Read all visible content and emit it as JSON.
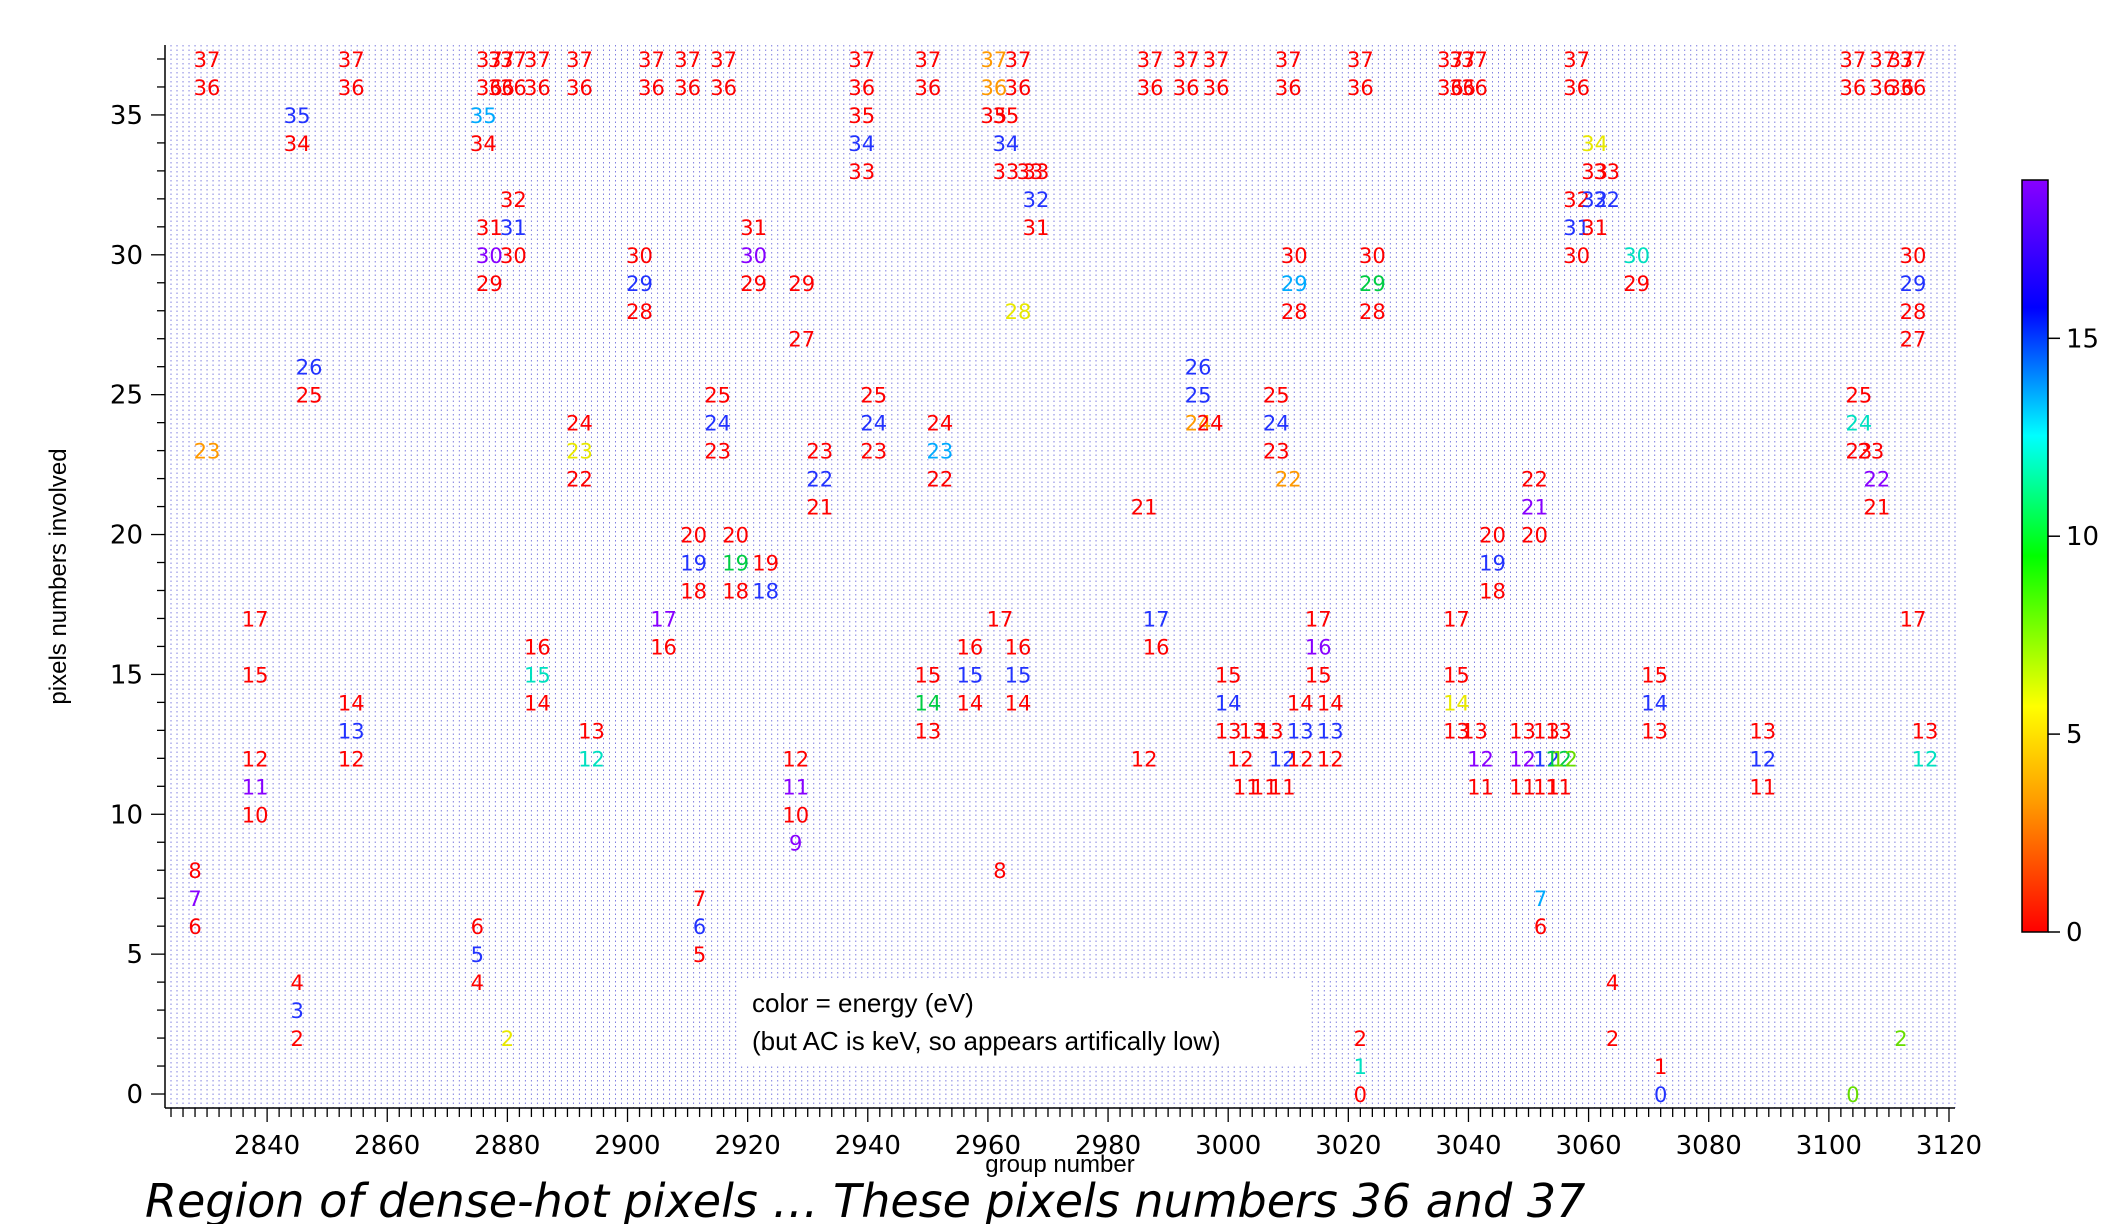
{
  "caption": "Region of dense-hot pixels … These pixels numbers 36 and 37",
  "annotation": {
    "line1": "color = energy (eV)",
    "line2": "(but AC is keV, so appears artifically low)"
  },
  "chart_data": {
    "type": "scatter",
    "xlabel": "group number",
    "ylabel": "pixels numbers involved",
    "xlim": [
      2823,
      3121
    ],
    "ylim": [
      -0.5,
      37.5
    ],
    "xticks": [
      2840,
      2860,
      2880,
      2900,
      2920,
      2940,
      2960,
      2980,
      3000,
      3020,
      3040,
      3060,
      3080,
      3100,
      3120
    ],
    "yticks": [
      0,
      5,
      10,
      15,
      20,
      25,
      30,
      35
    ],
    "grid": "vertical dotted lines, one per group number",
    "marker": "pixel number text colored by energy",
    "colorbar": {
      "label": "energy (eV)",
      "range": [
        0,
        19
      ],
      "ticks": [
        0,
        5,
        10,
        15
      ],
      "colormap": "rainbow (red low, violet high)"
    },
    "points": [
      {
        "x": 2828,
        "y": 8,
        "e": 0
      },
      {
        "x": 2828,
        "y": 7,
        "e": 18
      },
      {
        "x": 2828,
        "y": 6,
        "e": 0
      },
      {
        "x": 2830,
        "y": 37,
        "e": 0
      },
      {
        "x": 2830,
        "y": 36,
        "e": 0
      },
      {
        "x": 2830,
        "y": 23,
        "e": 2
      },
      {
        "x": 2838,
        "y": 17,
        "e": 0
      },
      {
        "x": 2838,
        "y": 15,
        "e": 0
      },
      {
        "x": 2838,
        "y": 12,
        "e": 0
      },
      {
        "x": 2838,
        "y": 11,
        "e": 18
      },
      {
        "x": 2838,
        "y": 10,
        "e": 0
      },
      {
        "x": 2845,
        "y": 35,
        "e": 17
      },
      {
        "x": 2845,
        "y": 34,
        "e": 0
      },
      {
        "x": 2845,
        "y": 4,
        "e": 0
      },
      {
        "x": 2845,
        "y": 3,
        "e": 17
      },
      {
        "x": 2845,
        "y": 2,
        "e": 0
      },
      {
        "x": 2847,
        "y": 26,
        "e": 17
      },
      {
        "x": 2847,
        "y": 25,
        "e": 0
      },
      {
        "x": 2854,
        "y": 37,
        "e": 0
      },
      {
        "x": 2854,
        "y": 36,
        "e": 0
      },
      {
        "x": 2854,
        "y": 14,
        "e": 0
      },
      {
        "x": 2854,
        "y": 13,
        "e": 16
      },
      {
        "x": 2854,
        "y": 12,
        "e": 0
      },
      {
        "x": 2875,
        "y": 6,
        "e": 0
      },
      {
        "x": 2875,
        "y": 5,
        "e": 17
      },
      {
        "x": 2875,
        "y": 4,
        "e": 0
      },
      {
        "x": 2876,
        "y": 35,
        "e": 14
      },
      {
        "x": 2876,
        "y": 34,
        "e": 0
      },
      {
        "x": 2877,
        "y": 37,
        "e": 0
      },
      {
        "x": 2877,
        "y": 36,
        "e": 0
      },
      {
        "x": 2877,
        "y": 31,
        "e": 0
      },
      {
        "x": 2877,
        "y": 30,
        "e": 18
      },
      {
        "x": 2877,
        "y": 29,
        "e": 0
      },
      {
        "x": 2879,
        "y": 37,
        "e": 0
      },
      {
        "x": 2879,
        "y": 36,
        "e": 0
      },
      {
        "x": 2880,
        "y": 2,
        "e": 6
      },
      {
        "x": 2881,
        "y": 37,
        "e": 0
      },
      {
        "x": 2881,
        "y": 36,
        "e": 0
      },
      {
        "x": 2881,
        "y": 32,
        "e": 0
      },
      {
        "x": 2881,
        "y": 31,
        "e": 17
      },
      {
        "x": 2881,
        "y": 30,
        "e": 0
      },
      {
        "x": 2885,
        "y": 37,
        "e": 0
      },
      {
        "x": 2885,
        "y": 36,
        "e": 0
      },
      {
        "x": 2885,
        "y": 16,
        "e": 0
      },
      {
        "x": 2885,
        "y": 15,
        "e": 12
      },
      {
        "x": 2885,
        "y": 14,
        "e": 0
      },
      {
        "x": 2892,
        "y": 37,
        "e": 0
      },
      {
        "x": 2892,
        "y": 36,
        "e": 0
      },
      {
        "x": 2892,
        "y": 24,
        "e": 0
      },
      {
        "x": 2892,
        "y": 23,
        "e": 6
      },
      {
        "x": 2892,
        "y": 22,
        "e": 0
      },
      {
        "x": 2894,
        "y": 13,
        "e": 0
      },
      {
        "x": 2894,
        "y": 12,
        "e": 12
      },
      {
        "x": 2902,
        "y": 30,
        "e": 0
      },
      {
        "x": 2902,
        "y": 29,
        "e": 17
      },
      {
        "x": 2902,
        "y": 28,
        "e": 0
      },
      {
        "x": 2904,
        "y": 37,
        "e": 0
      },
      {
        "x": 2904,
        "y": 36,
        "e": 0
      },
      {
        "x": 2906,
        "y": 17,
        "e": 18
      },
      {
        "x": 2906,
        "y": 16,
        "e": 0
      },
      {
        "x": 2910,
        "y": 37,
        "e": 0
      },
      {
        "x": 2910,
        "y": 36,
        "e": 0
      },
      {
        "x": 2911,
        "y": 20,
        "e": 0
      },
      {
        "x": 2911,
        "y": 19,
        "e": 17
      },
      {
        "x": 2911,
        "y": 18,
        "e": 0
      },
      {
        "x": 2912,
        "y": 7,
        "e": 0
      },
      {
        "x": 2912,
        "y": 6,
        "e": 17
      },
      {
        "x": 2912,
        "y": 5,
        "e": 0
      },
      {
        "x": 2915,
        "y": 25,
        "e": 0
      },
      {
        "x": 2915,
        "y": 24,
        "e": 17
      },
      {
        "x": 2915,
        "y": 23,
        "e": 0
      },
      {
        "x": 2916,
        "y": 37,
        "e": 0
      },
      {
        "x": 2916,
        "y": 36,
        "e": 0
      },
      {
        "x": 2918,
        "y": 20,
        "e": 0
      },
      {
        "x": 2918,
        "y": 19,
        "e": 11
      },
      {
        "x": 2918,
        "y": 18,
        "e": 0
      },
      {
        "x": 2921,
        "y": 31,
        "e": 0
      },
      {
        "x": 2921,
        "y": 30,
        "e": 18
      },
      {
        "x": 2921,
        "y": 29,
        "e": 0
      },
      {
        "x": 2923,
        "y": 19,
        "e": 0
      },
      {
        "x": 2923,
        "y": 18,
        "e": 17
      },
      {
        "x": 2929,
        "y": 29,
        "e": 0
      },
      {
        "x": 2929,
        "y": 27,
        "e": 0
      },
      {
        "x": 2928,
        "y": 12,
        "e": 0
      },
      {
        "x": 2928,
        "y": 11,
        "e": 18
      },
      {
        "x": 2928,
        "y": 10,
        "e": 0
      },
      {
        "x": 2928,
        "y": 9,
        "e": 18
      },
      {
        "x": 2932,
        "y": 23,
        "e": 0
      },
      {
        "x": 2932,
        "y": 22,
        "e": 17
      },
      {
        "x": 2932,
        "y": 21,
        "e": 0
      },
      {
        "x": 2939,
        "y": 37,
        "e": 0
      },
      {
        "x": 2939,
        "y": 36,
        "e": 0
      },
      {
        "x": 2939,
        "y": 35,
        "e": 0
      },
      {
        "x": 2939,
        "y": 34,
        "e": 17
      },
      {
        "x": 2939,
        "y": 33,
        "e": 0
      },
      {
        "x": 2941,
        "y": 25,
        "e": 0
      },
      {
        "x": 2941,
        "y": 24,
        "e": 17
      },
      {
        "x": 2941,
        "y": 23,
        "e": 0
      },
      {
        "x": 2950,
        "y": 37,
        "e": 0
      },
      {
        "x": 2950,
        "y": 36,
        "e": 0
      },
      {
        "x": 2950,
        "y": 15,
        "e": 0
      },
      {
        "x": 2950,
        "y": 14,
        "e": 11
      },
      {
        "x": 2950,
        "y": 13,
        "e": 0
      },
      {
        "x": 2952,
        "y": 24,
        "e": 0
      },
      {
        "x": 2952,
        "y": 23,
        "e": 15
      },
      {
        "x": 2952,
        "y": 22,
        "e": 0
      },
      {
        "x": 2957,
        "y": 16,
        "e": 0
      },
      {
        "x": 2957,
        "y": 15,
        "e": 17
      },
      {
        "x": 2957,
        "y": 14,
        "e": 0
      },
      {
        "x": 2961,
        "y": 37,
        "e": 2
      },
      {
        "x": 2961,
        "y": 36,
        "e": 2
      },
      {
        "x": 2961,
        "y": 35,
        "e": 0
      },
      {
        "x": 2962,
        "y": 17,
        "e": 0
      },
      {
        "x": 2962,
        "y": 8,
        "e": 0
      },
      {
        "x": 2963,
        "y": 35,
        "e": 0
      },
      {
        "x": 2963,
        "y": 34,
        "e": 17
      },
      {
        "x": 2963,
        "y": 33,
        "e": 0
      },
      {
        "x": 2965,
        "y": 37,
        "e": 0
      },
      {
        "x": 2965,
        "y": 36,
        "e": 0
      },
      {
        "x": 2965,
        "y": 28,
        "e": 6
      },
      {
        "x": 2965,
        "y": 16,
        "e": 0
      },
      {
        "x": 2965,
        "y": 15,
        "e": 17
      },
      {
        "x": 2965,
        "y": 14,
        "e": 0
      },
      {
        "x": 2967,
        "y": 33,
        "e": 0
      },
      {
        "x": 2968,
        "y": 33,
        "e": 0
      },
      {
        "x": 2968,
        "y": 32,
        "e": 17
      },
      {
        "x": 2968,
        "y": 31,
        "e": 0
      },
      {
        "x": 2987,
        "y": 37,
        "e": 0
      },
      {
        "x": 2987,
        "y": 36,
        "e": 0
      },
      {
        "x": 2986,
        "y": 21,
        "e": 0
      },
      {
        "x": 2986,
        "y": 12,
        "e": 0
      },
      {
        "x": 2988,
        "y": 17,
        "e": 17
      },
      {
        "x": 2988,
        "y": 16,
        "e": 0
      },
      {
        "x": 2993,
        "y": 37,
        "e": 0
      },
      {
        "x": 2993,
        "y": 36,
        "e": 0
      },
      {
        "x": 2995,
        "y": 26,
        "e": 17
      },
      {
        "x": 2995,
        "y": 25,
        "e": 16
      },
      {
        "x": 2995,
        "y": 24,
        "e": 3
      },
      {
        "x": 2997,
        "y": 24,
        "e": 0
      },
      {
        "x": 2998,
        "y": 37,
        "e": 0
      },
      {
        "x": 2998,
        "y": 36,
        "e": 0
      },
      {
        "x": 3000,
        "y": 15,
        "e": 0
      },
      {
        "x": 3000,
        "y": 14,
        "e": 17
      },
      {
        "x": 3000,
        "y": 13,
        "e": 0
      },
      {
        "x": 3002,
        "y": 12,
        "e": 0
      },
      {
        "x": 3003,
        "y": 11,
        "e": 0
      },
      {
        "x": 3004,
        "y": 13,
        "e": 0
      },
      {
        "x": 3006,
        "y": 11,
        "e": 0
      },
      {
        "x": 3007,
        "y": 13,
        "e": 0
      },
      {
        "x": 3008,
        "y": 25,
        "e": 0
      },
      {
        "x": 3008,
        "y": 24,
        "e": 17
      },
      {
        "x": 3008,
        "y": 23,
        "e": 0
      },
      {
        "x": 3009,
        "y": 12,
        "e": 17
      },
      {
        "x": 3009,
        "y": 11,
        "e": 0
      },
      {
        "x": 3010,
        "y": 37,
        "e": 0
      },
      {
        "x": 3010,
        "y": 36,
        "e": 0
      },
      {
        "x": 3011,
        "y": 30,
        "e": 0
      },
      {
        "x": 3011,
        "y": 29,
        "e": 14
      },
      {
        "x": 3011,
        "y": 28,
        "e": 0
      },
      {
        "x": 3010,
        "y": 22,
        "e": 2
      },
      {
        "x": 3012,
        "y": 14,
        "e": 0
      },
      {
        "x": 3012,
        "y": 13,
        "e": 17
      },
      {
        "x": 3012,
        "y": 12,
        "e": 0
      },
      {
        "x": 3015,
        "y": 17,
        "e": 0
      },
      {
        "x": 3015,
        "y": 16,
        "e": 18
      },
      {
        "x": 3015,
        "y": 15,
        "e": 0
      },
      {
        "x": 3017,
        "y": 14,
        "e": 0
      },
      {
        "x": 3017,
        "y": 13,
        "e": 17
      },
      {
        "x": 3017,
        "y": 12,
        "e": 0
      },
      {
        "x": 3022,
        "y": 37,
        "e": 0
      },
      {
        "x": 3022,
        "y": 36,
        "e": 0
      },
      {
        "x": 3022,
        "y": 2,
        "e": 0
      },
      {
        "x": 3022,
        "y": 1,
        "e": 13
      },
      {
        "x": 3022,
        "y": 0,
        "e": 0
      },
      {
        "x": 3024,
        "y": 30,
        "e": 0
      },
      {
        "x": 3024,
        "y": 29,
        "e": 11
      },
      {
        "x": 3024,
        "y": 28,
        "e": 0
      },
      {
        "x": 3037,
        "y": 37,
        "e": 0
      },
      {
        "x": 3037,
        "y": 36,
        "e": 0
      },
      {
        "x": 3039,
        "y": 37,
        "e": 0
      },
      {
        "x": 3039,
        "y": 36,
        "e": 0
      },
      {
        "x": 3041,
        "y": 37,
        "e": 0
      },
      {
        "x": 3041,
        "y": 36,
        "e": 0
      },
      {
        "x": 3038,
        "y": 17,
        "e": 0
      },
      {
        "x": 3038,
        "y": 15,
        "e": 0
      },
      {
        "x": 3038,
        "y": 14,
        "e": 6
      },
      {
        "x": 3038,
        "y": 13,
        "e": 0
      },
      {
        "x": 3041,
        "y": 13,
        "e": 0
      },
      {
        "x": 3042,
        "y": 12,
        "e": 18
      },
      {
        "x": 3042,
        "y": 11,
        "e": 0
      },
      {
        "x": 3044,
        "y": 20,
        "e": 0
      },
      {
        "x": 3044,
        "y": 19,
        "e": 17
      },
      {
        "x": 3044,
        "y": 18,
        "e": 0
      },
      {
        "x": 3049,
        "y": 13,
        "e": 0
      },
      {
        "x": 3049,
        "y": 12,
        "e": 18
      },
      {
        "x": 3049,
        "y": 11,
        "e": 0
      },
      {
        "x": 3051,
        "y": 22,
        "e": 0
      },
      {
        "x": 3051,
        "y": 21,
        "e": 18
      },
      {
        "x": 3051,
        "y": 20,
        "e": 0
      },
      {
        "x": 3052,
        "y": 7,
        "e": 14
      },
      {
        "x": 3052,
        "y": 6,
        "e": 0
      },
      {
        "x": 3053,
        "y": 13,
        "e": 0
      },
      {
        "x": 3053,
        "y": 12,
        "e": 17
      },
      {
        "x": 3053,
        "y": 11,
        "e": 0
      },
      {
        "x": 3055,
        "y": 13,
        "e": 0
      },
      {
        "x": 3055,
        "y": 12,
        "e": 10
      },
      {
        "x": 3055,
        "y": 11,
        "e": 0
      },
      {
        "x": 3056,
        "y": 12,
        "e": 8
      },
      {
        "x": 3058,
        "y": 37,
        "e": 0
      },
      {
        "x": 3058,
        "y": 36,
        "e": 0
      },
      {
        "x": 3058,
        "y": 32,
        "e": 0
      },
      {
        "x": 3058,
        "y": 31,
        "e": 17
      },
      {
        "x": 3058,
        "y": 30,
        "e": 0
      },
      {
        "x": 3061,
        "y": 34,
        "e": 6
      },
      {
        "x": 3061,
        "y": 33,
        "e": 0
      },
      {
        "x": 3061,
        "y": 32,
        "e": 17
      },
      {
        "x": 3061,
        "y": 31,
        "e": 0
      },
      {
        "x": 3063,
        "y": 33,
        "e": 0
      },
      {
        "x": 3063,
        "y": 32,
        "e": 17
      },
      {
        "x": 3064,
        "y": 4,
        "e": 0
      },
      {
        "x": 3064,
        "y": 2,
        "e": 0
      },
      {
        "x": 3068,
        "y": 30,
        "e": 12
      },
      {
        "x": 3068,
        "y": 29,
        "e": 0
      },
      {
        "x": 3071,
        "y": 15,
        "e": 0
      },
      {
        "x": 3071,
        "y": 14,
        "e": 17
      },
      {
        "x": 3071,
        "y": 13,
        "e": 0
      },
      {
        "x": 3072,
        "y": 1,
        "e": 0
      },
      {
        "x": 3072,
        "y": 0,
        "e": 17
      },
      {
        "x": 3089,
        "y": 13,
        "e": 0
      },
      {
        "x": 3089,
        "y": 12,
        "e": 17
      },
      {
        "x": 3089,
        "y": 11,
        "e": 0
      },
      {
        "x": 3104,
        "y": 37,
        "e": 0
      },
      {
        "x": 3104,
        "y": 36,
        "e": 0
      },
      {
        "x": 3105,
        "y": 25,
        "e": 0
      },
      {
        "x": 3105,
        "y": 24,
        "e": 13
      },
      {
        "x": 3105,
        "y": 23,
        "e": 0
      },
      {
        "x": 3104,
        "y": 0,
        "e": 9
      },
      {
        "x": 3107,
        "y": 23,
        "e": 0
      },
      {
        "x": 3108,
        "y": 22,
        "e": 18
      },
      {
        "x": 3108,
        "y": 21,
        "e": 0
      },
      {
        "x": 3109,
        "y": 37,
        "e": 0
      },
      {
        "x": 3109,
        "y": 36,
        "e": 0
      },
      {
        "x": 3112,
        "y": 37,
        "e": 0
      },
      {
        "x": 3112,
        "y": 36,
        "e": 0
      },
      {
        "x": 3112,
        "y": 2,
        "e": 7
      },
      {
        "x": 3114,
        "y": 37,
        "e": 0
      },
      {
        "x": 3114,
        "y": 36,
        "e": 0
      },
      {
        "x": 3114,
        "y": 30,
        "e": 0
      },
      {
        "x": 3114,
        "y": 29,
        "e": 17
      },
      {
        "x": 3114,
        "y": 28,
        "e": 0
      },
      {
        "x": 3114,
        "y": 27,
        "e": 0
      },
      {
        "x": 3114,
        "y": 17,
        "e": 0
      },
      {
        "x": 3116,
        "y": 13,
        "e": 0
      },
      {
        "x": 3116,
        "y": 12,
        "e": 13
      }
    ]
  }
}
